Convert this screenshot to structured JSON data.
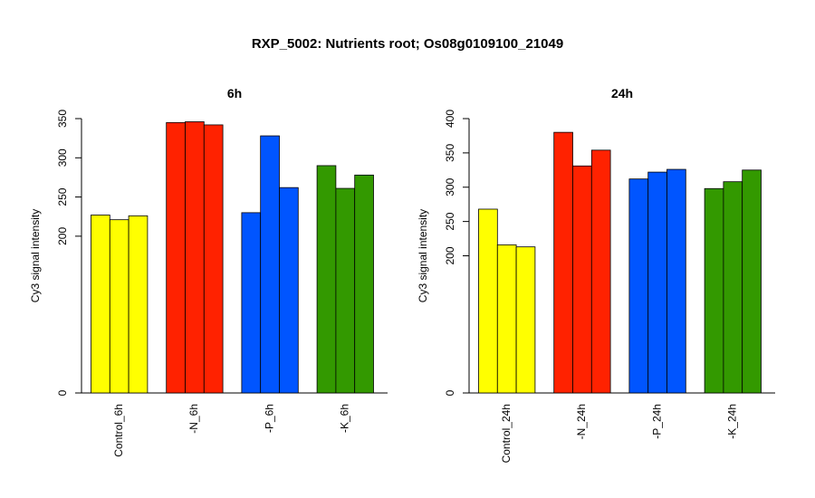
{
  "title": "RXP_5002: Nutrients root; Os08g0109100_21049",
  "chart_data": [
    {
      "type": "bar",
      "title": "6h",
      "ylabel": "Cy3 signal intensity",
      "ylim": [
        0,
        350
      ],
      "y_ticks": [
        0,
        200,
        250,
        300,
        350
      ],
      "groups": [
        {
          "label": "Control_6h",
          "color": "#ffff00",
          "values": [
            227,
            221,
            226
          ]
        },
        {
          "label": "-N_6h",
          "color": "#ff2200",
          "values": [
            345,
            346,
            342
          ]
        },
        {
          "label": "-P_6h",
          "color": "#0055ff",
          "values": [
            230,
            328,
            262
          ]
        },
        {
          "label": "-K_6h",
          "color": "#339900",
          "values": [
            290,
            261,
            278
          ]
        }
      ]
    },
    {
      "type": "bar",
      "title": "24h",
      "ylabel": "Cy3 signal intensity",
      "ylim": [
        0,
        400
      ],
      "y_ticks": [
        0,
        200,
        250,
        300,
        350,
        400
      ],
      "groups": [
        {
          "label": "Control_24h",
          "color": "#ffff00",
          "values": [
            268,
            216,
            213
          ]
        },
        {
          "label": "-N_24h",
          "color": "#ff2200",
          "values": [
            380,
            331,
            354
          ]
        },
        {
          "label": "-P_24h",
          "color": "#0055ff",
          "values": [
            312,
            322,
            326
          ]
        },
        {
          "label": "-K_24h",
          "color": "#339900",
          "values": [
            298,
            308,
            325
          ]
        }
      ]
    }
  ]
}
